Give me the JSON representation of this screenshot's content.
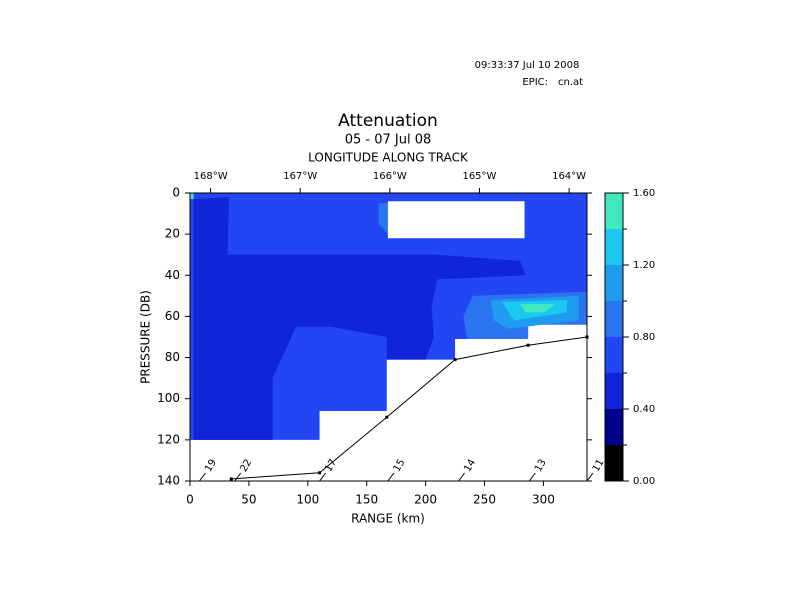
{
  "header": {
    "timestamp": "09:33:37 Jul 10 2008",
    "epic_label": "EPIC:",
    "epic_file": "cn.at"
  },
  "chart_data": {
    "type": "contour",
    "title": "Attenuation",
    "subtitle": "05 - 07 Jul 08",
    "x2_label": "LONGITUDE ALONG TRACK",
    "x_label": "RANGE (km)",
    "y_label": "PRESSURE (DB)",
    "xlim": [
      0,
      337
    ],
    "xticks": [
      0,
      50,
      100,
      150,
      200,
      250,
      300
    ],
    "ylim": [
      140,
      0
    ],
    "yticks": [
      0,
      20,
      40,
      60,
      80,
      100,
      120,
      140
    ],
    "x2lim": [
      -168.23,
      -163.8
    ],
    "x2ticks": [
      {
        "value": -168,
        "label": "168°W"
      },
      {
        "value": -167,
        "label": "167°W"
      },
      {
        "value": -166,
        "label": "166°W"
      },
      {
        "value": -165,
        "label": "165°W"
      },
      {
        "value": -164,
        "label": "164°W"
      }
    ],
    "colorbar": {
      "levels": [
        0,
        0.2,
        0.4,
        0.6,
        0.8,
        1.0,
        1.2,
        1.4,
        1.6
      ],
      "colors": [
        "#000000",
        "#00008c",
        "#1024d8",
        "#2246f2",
        "#2a74f0",
        "#1e9cf0",
        "#1cc8f0",
        "#40e8c0"
      ],
      "ticks": [
        {
          "value": 0,
          "label": "0.00"
        },
        {
          "value": 0.4,
          "label": "0.40"
        },
        {
          "value": 0.8,
          "label": "0.80"
        },
        {
          "value": 1.2,
          "label": "1.20"
        },
        {
          "value": 1.6,
          "label": "1.60"
        }
      ]
    },
    "regions": [
      {
        "level": 0.6,
        "x": [
          0,
          337,
          337,
          287,
          287,
          225,
          225,
          167,
          167,
          110,
          110,
          0
        ],
        "y": [
          0,
          0,
          64,
          64,
          71,
          71,
          81,
          81,
          106,
          106,
          120,
          120
        ]
      },
      {
        "level": 0.4,
        "x": [
          3,
          33,
          32,
          210,
          280,
          285,
          210,
          205,
          207,
          200,
          167,
          167,
          120,
          90,
          70,
          70,
          3
        ],
        "y": [
          3,
          2,
          30,
          30,
          33,
          40,
          42,
          55,
          70,
          81,
          81,
          70,
          65,
          65,
          90,
          120,
          120
        ]
      },
      {
        "level": 1.4,
        "x": [
          0,
          3,
          3,
          0
        ],
        "y": [
          0,
          0,
          3,
          3
        ]
      },
      {
        "level": 0.8,
        "x": [
          160,
          168,
          168,
          160
        ],
        "y": [
          5,
          5,
          20,
          15
        ]
      },
      {
        "level": 0.8,
        "x": [
          240,
          337,
          337,
          287,
          287,
          235,
          232
        ],
        "y": [
          50,
          48,
          64,
          64,
          71,
          71,
          60
        ]
      },
      {
        "level": 1.0,
        "x": [
          255,
          330,
          330,
          270,
          258
        ],
        "y": [
          52,
          50,
          62,
          66,
          62
        ]
      },
      {
        "level": 1.2,
        "x": [
          265,
          320,
          320,
          275
        ],
        "y": [
          53,
          52,
          58,
          62
        ]
      },
      {
        "level": 1.4,
        "x": [
          280,
          310,
          300,
          285
        ],
        "y": [
          54,
          54,
          58,
          58
        ]
      }
    ],
    "gaps": [
      {
        "x": [
          168,
          284,
          284,
          168
        ],
        "y": [
          4,
          4,
          22,
          22
        ]
      }
    ],
    "bottom": {
      "x": [
        35,
        110,
        167,
        225,
        287,
        337
      ],
      "y": [
        139,
        136,
        109,
        81,
        74,
        70
      ],
      "color": "#000000"
    },
    "stations": {
      "labels": [
        "19",
        "22",
        "17",
        "15",
        "14",
        "13",
        "11"
      ],
      "x": [
        8,
        38,
        110,
        168,
        228,
        288,
        337
      ]
    }
  }
}
